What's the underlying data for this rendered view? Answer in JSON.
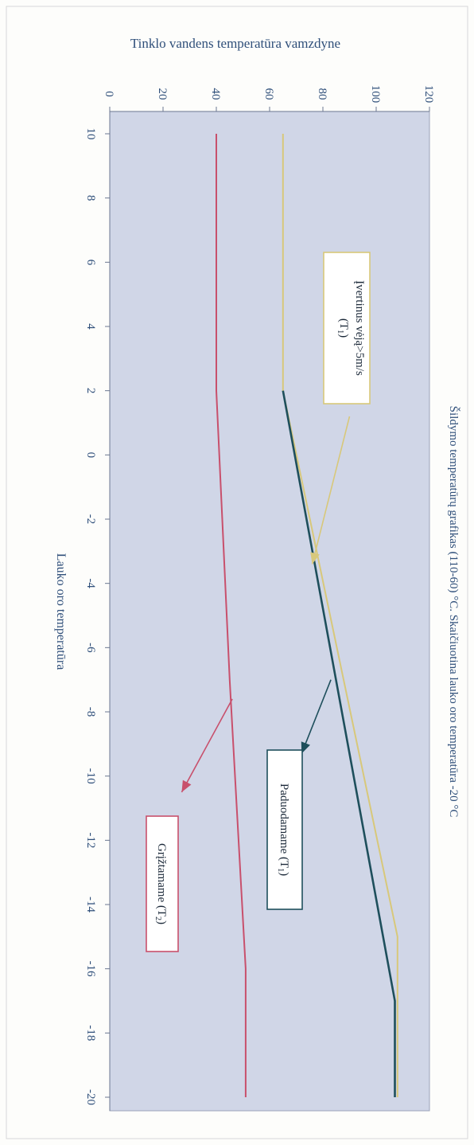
{
  "chart_data": {
    "type": "line",
    "title": "Šildymo temperatūrų grafikas (110-60) °C. Skaičiuotina lauko oro temperatūra -20 °C",
    "xlabel": "Lauko oro temperatūra",
    "ylabel": "Tinklo vandens temperatūra vamzdyne",
    "xlim": [
      10,
      -20
    ],
    "ylim": [
      0,
      120
    ],
    "x_ticks": [
      "10",
      "8",
      "6",
      "4",
      "2",
      "0",
      "-2",
      "-4",
      "-6",
      "-8",
      "-10",
      "-12",
      "-14",
      "-16",
      "-18",
      "-20"
    ],
    "y_ticks": [
      "0",
      "20",
      "40",
      "60",
      "80",
      "100",
      "120"
    ],
    "grid": false,
    "series": [
      {
        "name": "Įvertinus vėją>5m/s (T1)",
        "color": "#d8c87a",
        "x": [
          10,
          2,
          -15,
          -20
        ],
        "y": [
          65,
          65,
          108,
          108
        ]
      },
      {
        "name": "Paduodamame (T1)",
        "color": "#1e4f5c",
        "x": [
          2,
          -17,
          -20
        ],
        "y": [
          65,
          107,
          107
        ]
      },
      {
        "name": "Grįžtamame (T2)",
        "color": "#c8506c",
        "x": [
          10,
          2,
          -7,
          -16,
          -20
        ],
        "y": [
          40,
          40,
          45,
          51,
          51
        ]
      }
    ],
    "annotations": [
      {
        "label": "Įvertinus vėją>5m/s (T",
        "sub": "1",
        "suffix": ")",
        "color": "#d8c87a"
      },
      {
        "label": "Paduodamame (T",
        "sub": "1",
        "suffix": ")",
        "color": "#1e4f5c"
      },
      {
        "label": "Grįžtamame (T",
        "sub": "2",
        "suffix": ")",
        "color": "#c8506c"
      }
    ]
  }
}
